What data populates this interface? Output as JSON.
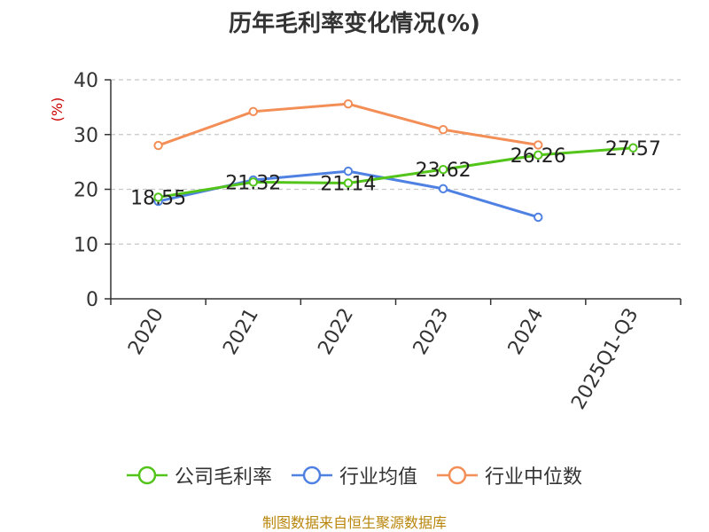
{
  "title": "历年毛利率变化情况(%)",
  "source": "制图数据来自恒生聚源数据库",
  "chart_data": {
    "type": "line",
    "title": "历年毛利率变化情况(%)",
    "ylabel": "(%)",
    "ylabel_color": "#cc0000",
    "ylim": [
      0,
      40
    ],
    "yticks": [
      0,
      10,
      20,
      30,
      40
    ],
    "grid": true,
    "legend_position": "bottom",
    "categories": [
      "2020",
      "2021",
      "2022",
      "2023",
      "2024",
      "2025Q1-Q3"
    ],
    "series": [
      {
        "name": "公司毛利率",
        "color": "#52c41a",
        "values": [
          18.55,
          21.32,
          21.14,
          23.62,
          26.26,
          27.57
        ],
        "labels": [
          "18.55",
          "21.32",
          "21.14",
          "23.62",
          "26.26",
          "27.57"
        ]
      },
      {
        "name": "行业均值",
        "color": "#4f81e3",
        "values": [
          17.8,
          21.7,
          23.3,
          20.1,
          14.9,
          null
        ]
      },
      {
        "name": "行业中位数",
        "color": "#f28e56",
        "values": [
          28.0,
          34.2,
          35.6,
          30.9,
          28.1,
          null
        ]
      }
    ]
  }
}
